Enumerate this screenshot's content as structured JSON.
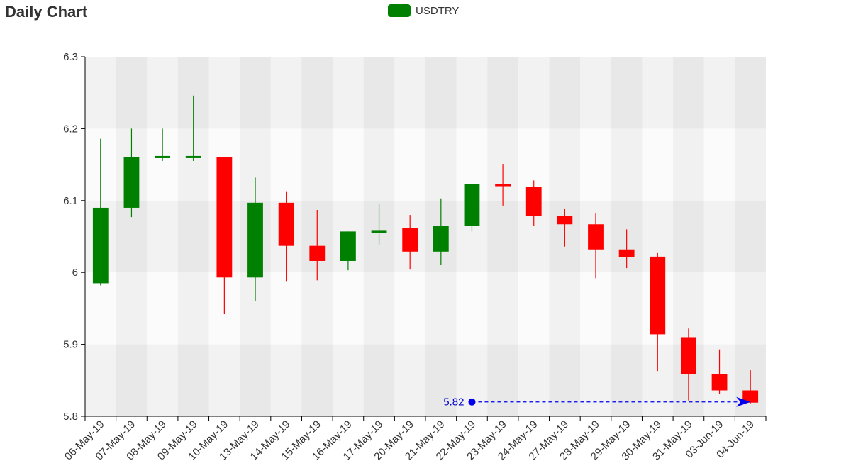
{
  "title": "Daily Chart",
  "legend": {
    "label": "USDTRY",
    "color": "#008000"
  },
  "colors": {
    "up": "#008000",
    "down": "#ff0000",
    "annotation": "#0000ee",
    "axis": "#000000"
  },
  "chart_data": {
    "type": "candlestick",
    "title": "Daily Chart",
    "series": [
      {
        "name": "USDTRY"
      }
    ],
    "legend_position": "top-center",
    "ylim": [
      5.8,
      6.3
    ],
    "yticks": [
      5.8,
      5.9,
      6,
      6.1,
      6.2,
      6.3
    ],
    "ytick_labels": [
      "5.8",
      "5.9",
      "6",
      "6.1",
      "6.2",
      "6.3"
    ],
    "grid": true,
    "categories": [
      "06-May-19",
      "07-May-19",
      "08-May-19",
      "09-May-19",
      "10-May-19",
      "13-May-19",
      "14-May-19",
      "15-May-19",
      "16-May-19",
      "17-May-19",
      "20-May-19",
      "21-May-19",
      "22-May-19",
      "23-May-19",
      "24-May-19",
      "27-May-19",
      "28-May-19",
      "29-May-19",
      "30-May-19",
      "31-May-19",
      "03-Jun-19",
      "04-Jun-19"
    ],
    "open": [
      5.985,
      6.09,
      6.159,
      6.162,
      6.16,
      5.993,
      6.097,
      6.037,
      6.016,
      6.057,
      6.062,
      6.029,
      6.065,
      6.123,
      6.119,
      6.079,
      6.067,
      6.032,
      6.022,
      5.91,
      5.859,
      5.836
    ],
    "high": [
      6.186,
      6.2,
      6.2,
      6.246,
      6.16,
      6.132,
      6.112,
      6.087,
      6.057,
      6.095,
      6.08,
      6.103,
      6.123,
      6.151,
      6.128,
      6.088,
      6.082,
      6.06,
      6.027,
      5.922,
      5.893,
      5.864
    ],
    "low": [
      5.982,
      6.077,
      6.155,
      6.155,
      5.942,
      5.96,
      5.988,
      5.989,
      6.003,
      6.039,
      6.004,
      6.011,
      6.057,
      6.093,
      6.065,
      6.036,
      5.992,
      6.006,
      5.863,
      5.822,
      5.831,
      5.818
    ],
    "close": [
      6.09,
      6.16,
      6.162,
      6.162,
      5.993,
      6.097,
      6.037,
      6.016,
      6.057,
      6.058,
      6.029,
      6.065,
      6.123,
      6.12,
      6.079,
      6.067,
      6.032,
      6.021,
      5.914,
      5.859,
      5.836,
      5.819
    ],
    "annotation": {
      "label": "5.82",
      "value": 5.82,
      "start_category": "22-May-19",
      "end_category": "04-Jun-19"
    }
  }
}
